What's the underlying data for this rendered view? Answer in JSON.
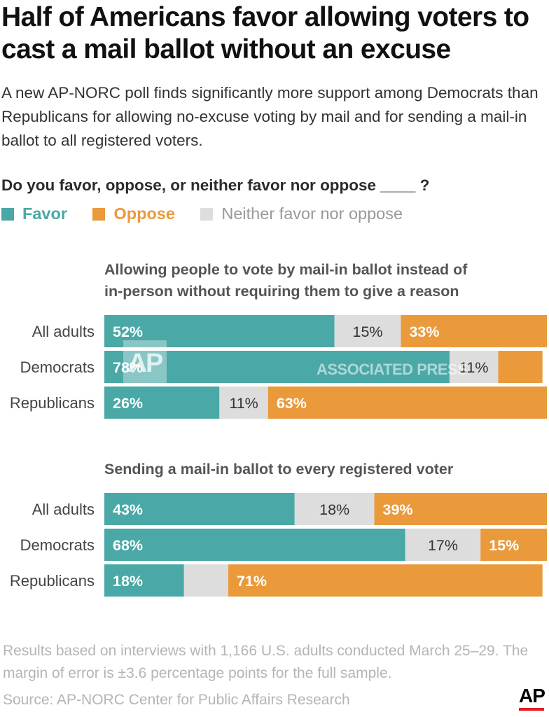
{
  "title": "Half of Americans favor allowing voters to cast a mail ballot without an excuse",
  "subtitle": "A new AP-NORC poll finds significantly more support among Democrats than Republicans for allowing no-excuse voting by mail and for sending a mail-in ballot to all registered voters.",
  "question": "Do you favor, oppose, or neither favor nor oppose ____ ?",
  "legend": [
    {
      "label": "Favor",
      "color": "#4aa8a6"
    },
    {
      "label": "Oppose",
      "color": "#ea9a3b"
    },
    {
      "label": "Neither favor nor oppose",
      "color": "#dddddd"
    }
  ],
  "watermark": {
    "logo": "AP",
    "text": "ASSOCIATED PRESS"
  },
  "chart_data": [
    {
      "type": "bar",
      "orientation": "horizontal-stacked-100",
      "title": "Allowing people to vote by mail-in ballot instead of in-person without requiring them to give a reason",
      "categories": [
        "All adults",
        "Democrats",
        "Republicans"
      ],
      "series": [
        {
          "name": "Favor",
          "values": [
            52,
            78,
            26
          ],
          "labels": [
            "52%",
            "78%",
            "26%"
          ]
        },
        {
          "name": "Neither favor nor oppose",
          "values": [
            15,
            11,
            11
          ],
          "labels": [
            "15%",
            "11%",
            "11%"
          ]
        },
        {
          "name": "Oppose",
          "values": [
            33,
            10,
            63
          ],
          "labels": [
            "33%",
            "",
            "63%"
          ]
        }
      ]
    },
    {
      "type": "bar",
      "orientation": "horizontal-stacked-100",
      "title": "Sending a mail-in ballot to every registered voter",
      "categories": [
        "All adults",
        "Democrats",
        "Republicans"
      ],
      "series": [
        {
          "name": "Favor",
          "values": [
            43,
            68,
            18
          ],
          "labels": [
            "43%",
            "68%",
            "18%"
          ]
        },
        {
          "name": "Neither favor nor oppose",
          "values": [
            18,
            17,
            10
          ],
          "labels": [
            "18%",
            "17%",
            ""
          ]
        },
        {
          "name": "Oppose",
          "values": [
            39,
            15,
            71
          ],
          "labels": [
            "39%",
            "15%",
            "71%"
          ]
        }
      ]
    }
  ],
  "footnote": "Results based on interviews with 1,166 U.S. adults conducted March 25–29. The margin of error is ±3.6 percentage points for the full sample.",
  "source": "Source: AP-NORC Center for Public Affairs Research",
  "logo": "AP"
}
